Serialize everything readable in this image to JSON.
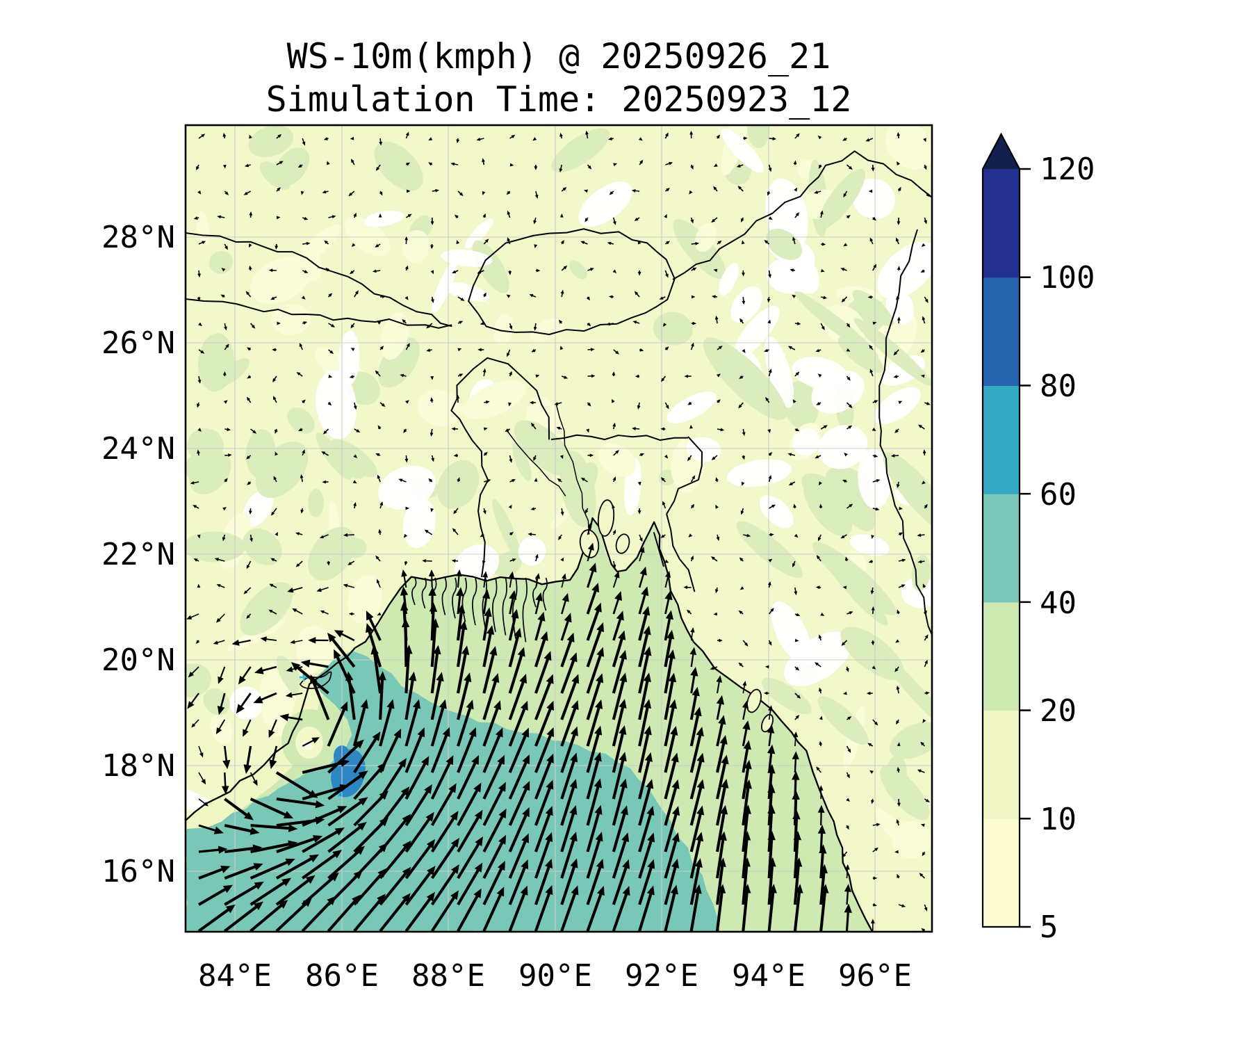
{
  "title": {
    "line1": "WS-10m(kmph) @ 20250926_21",
    "line2": "Simulation Time: 20250923_12"
  },
  "axes": {
    "x_ticks": [
      "84°E",
      "86°E",
      "88°E",
      "90°E",
      "92°E",
      "94°E",
      "96°E"
    ],
    "y_ticks": [
      "28°N",
      "26°N",
      "24°N",
      "22°N",
      "20°N",
      "18°N",
      "16°N"
    ]
  },
  "colorbar": {
    "units": "kmph",
    "tick_labels": [
      "120",
      "100",
      "80",
      "60",
      "40",
      "20",
      "10",
      "5"
    ],
    "levels": [
      5,
      10,
      20,
      40,
      60,
      80,
      100,
      120
    ],
    "segment_colors": [
      "#fbfcd2",
      "#f0f7c5",
      "#cfe9b3",
      "#7ac7b7",
      "#35a8c3",
      "#2563ac",
      "#24308f"
    ],
    "extend_color": "#12204e"
  },
  "map": {
    "land_color": "#f3f8cb",
    "land_patch_green": "#d9ecba",
    "land_patch_light": "#fafcd8",
    "land_patch_white": "#ffffff",
    "nearshore_color": "#f0f7c5",
    "coastal_band_color": "#cfe9b3",
    "open_sea_color": "#79c7b6",
    "high_wind_patch_color": "#2e86c3",
    "eye_ring_color": "#cfe9b3",
    "eye_color": "#f2f8c8",
    "eye_core_color": "#fcfde5",
    "coastline_color": "#000000",
    "gridline_color": "#cccccc",
    "arrow_color": "#000000",
    "storm_marker_color": "#38bcd8"
  }
}
